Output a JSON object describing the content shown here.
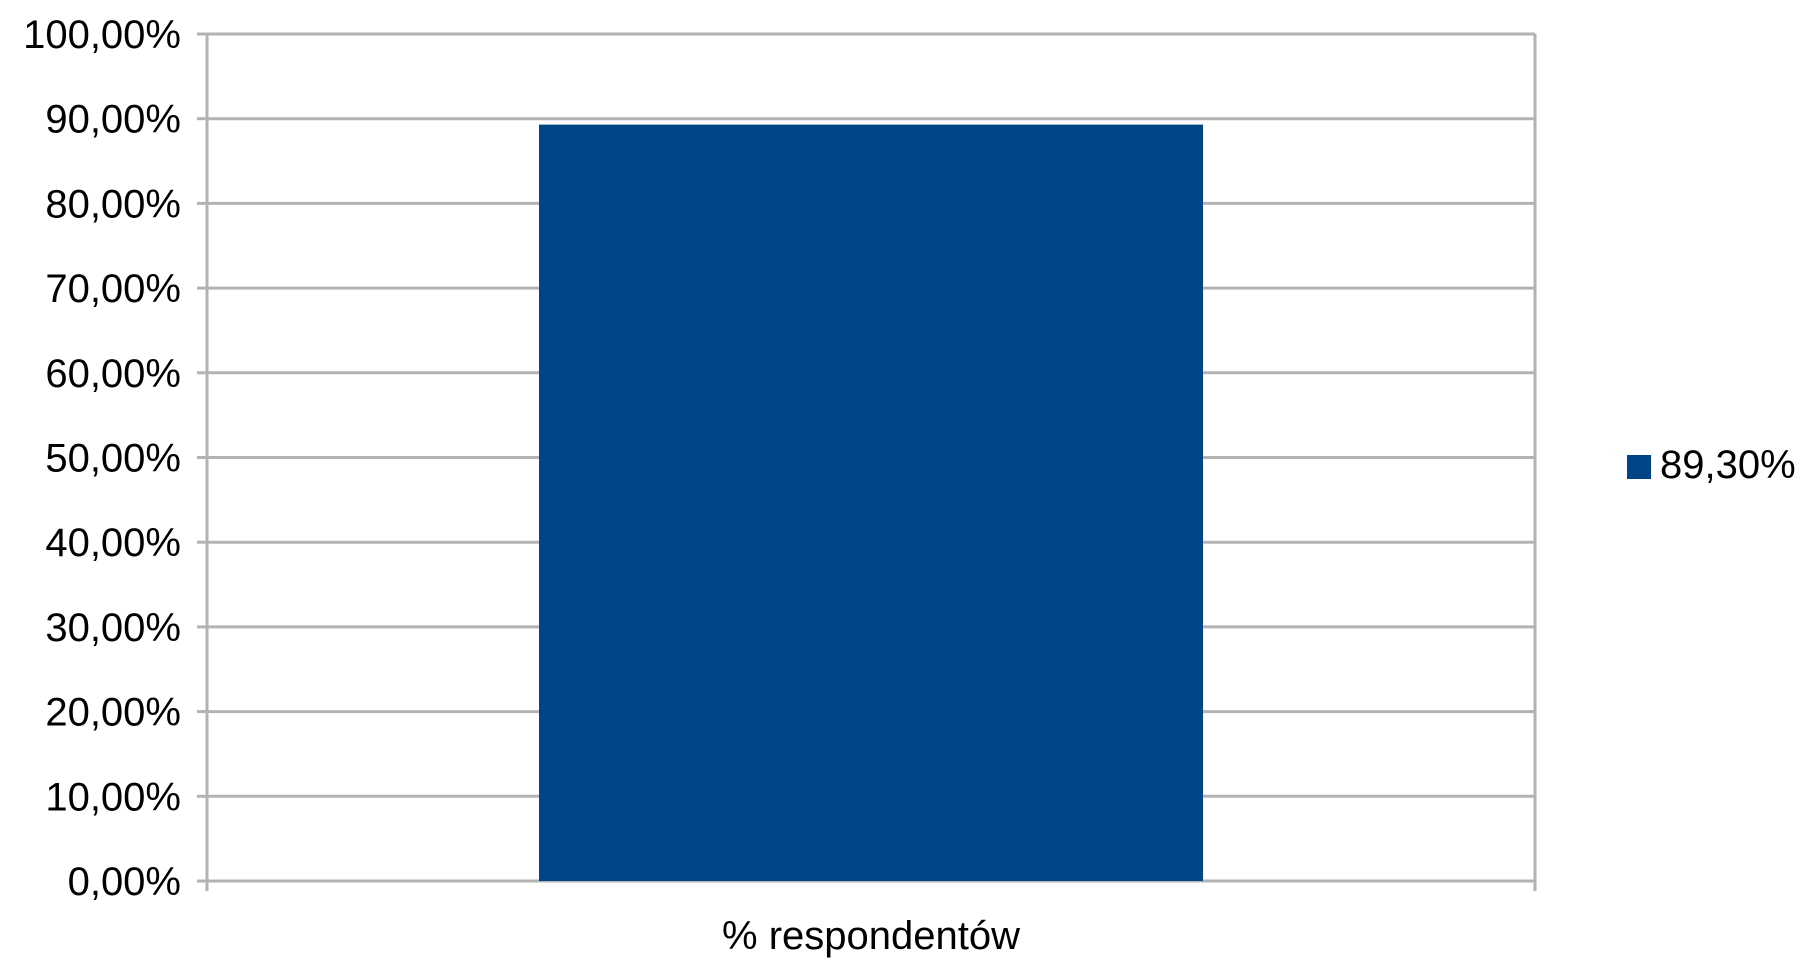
{
  "chart_data": {
    "type": "bar",
    "categories": [
      "% respondentów"
    ],
    "series": [
      {
        "name": "89,30%",
        "values": [
          89.3
        ],
        "color": "#004586"
      }
    ],
    "ylim": [
      0,
      100
    ],
    "yticks": [
      0,
      10,
      20,
      30,
      40,
      50,
      60,
      70,
      80,
      90,
      100
    ],
    "ytick_labels": [
      "0,00%",
      "10,00%",
      "20,00%",
      "30,00%",
      "40,00%",
      "50,00%",
      "60,00%",
      "70,00%",
      "80,00%",
      "90,00%",
      "100,00%"
    ],
    "grid": true,
    "legend_position": "right"
  }
}
